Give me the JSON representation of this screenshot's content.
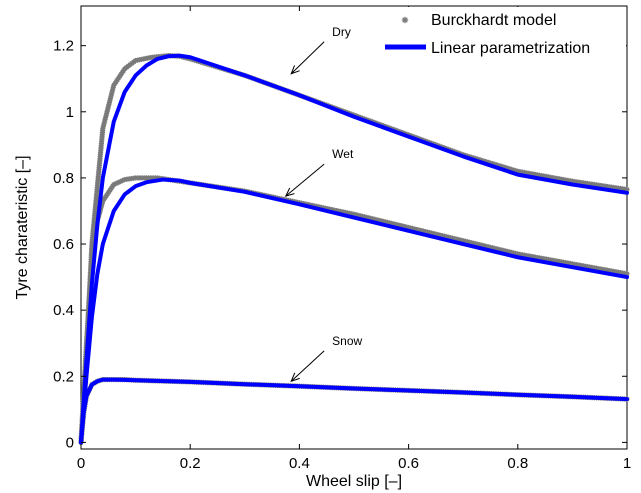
{
  "chart_data": {
    "type": "line",
    "title": "",
    "xlabel": "Wheel slip [–]",
    "ylabel": "Tyre charateristic [–]",
    "xlim": [
      0,
      1
    ],
    "ylim": [
      -0.02,
      1.32
    ],
    "x_ticks": [
      0,
      0.2,
      0.4,
      0.6,
      0.8,
      1
    ],
    "x_tick_labels": [
      "0",
      "0.2",
      "0.4",
      "0.6",
      "0.8",
      "1"
    ],
    "y_ticks": [
      0,
      0.2,
      0.4,
      0.6,
      0.8,
      1,
      1.2
    ],
    "y_tick_labels": [
      "0",
      "0.2",
      "0.4",
      "0.6",
      "0.8",
      "1",
      "1.2"
    ],
    "grid": false,
    "legend_position": "top-right",
    "colors": {
      "burckhardt": "#7a7a7a",
      "linear": "#0000ff"
    },
    "legend": [
      {
        "label": "Burckhardt model",
        "marker": "asterisk",
        "color": "#7a7a7a"
      },
      {
        "label": "Linear parametrization",
        "line": "solid",
        "color": "#0000ff"
      }
    ],
    "series": [
      {
        "name": "Burckhardt model",
        "style": "markers",
        "color": "#7a7a7a",
        "curves": [
          {
            "surface": "Dry",
            "x": [
              0,
              0.01,
              0.02,
              0.04,
              0.06,
              0.08,
              0.1,
              0.13,
              0.16,
              0.18,
              0.2,
              0.3,
              0.4,
              0.5,
              0.6,
              0.7,
              0.8,
              0.9,
              1.0
            ],
            "y": [
              0,
              0.28,
              0.6,
              0.95,
              1.08,
              1.13,
              1.155,
              1.165,
              1.17,
              1.168,
              1.16,
              1.11,
              1.05,
              0.99,
              0.93,
              0.87,
              0.82,
              0.79,
              0.765
            ]
          },
          {
            "surface": "Wet",
            "x": [
              0,
              0.01,
              0.02,
              0.03,
              0.04,
              0.06,
              0.08,
              0.1,
              0.12,
              0.14,
              0.16,
              0.2,
              0.3,
              0.4,
              0.5,
              0.6,
              0.7,
              0.8,
              0.9,
              1.0
            ],
            "y": [
              0,
              0.3,
              0.55,
              0.67,
              0.73,
              0.78,
              0.795,
              0.8,
              0.8,
              0.8,
              0.795,
              0.785,
              0.76,
              0.725,
              0.69,
              0.65,
              0.61,
              0.57,
              0.54,
              0.51
            ]
          },
          {
            "surface": "Snow",
            "x": [
              0,
              0.005,
              0.01,
              0.02,
              0.03,
              0.04,
              0.06,
              0.08,
              0.1,
              0.2,
              0.3,
              0.4,
              0.5,
              0.6,
              0.7,
              0.8,
              0.9,
              1.0
            ],
            "y": [
              0,
              0.09,
              0.14,
              0.175,
              0.185,
              0.19,
              0.19,
              0.19,
              0.188,
              0.183,
              0.176,
              0.17,
              0.163,
              0.157,
              0.151,
              0.144,
              0.138,
              0.131
            ]
          }
        ]
      },
      {
        "name": "Linear parametrization",
        "style": "line",
        "color": "#0000ff",
        "curves": [
          {
            "surface": "Dry",
            "x": [
              0,
              0.01,
              0.02,
              0.03,
              0.04,
              0.06,
              0.08,
              0.1,
              0.12,
              0.14,
              0.16,
              0.18,
              0.2,
              0.3,
              0.4,
              0.5,
              0.6,
              0.7,
              0.8,
              0.9,
              1.0
            ],
            "y": [
              0,
              0.25,
              0.48,
              0.66,
              0.8,
              0.97,
              1.06,
              1.11,
              1.14,
              1.16,
              1.168,
              1.17,
              1.165,
              1.11,
              1.05,
              0.985,
              0.925,
              0.865,
              0.81,
              0.78,
              0.755
            ]
          },
          {
            "surface": "Wet",
            "x": [
              0,
              0.01,
              0.02,
              0.03,
              0.04,
              0.06,
              0.08,
              0.1,
              0.12,
              0.15,
              0.18,
              0.2,
              0.3,
              0.4,
              0.5,
              0.6,
              0.7,
              0.8,
              0.9,
              1.0
            ],
            "y": [
              0,
              0.2,
              0.38,
              0.51,
              0.6,
              0.7,
              0.75,
              0.775,
              0.787,
              0.795,
              0.792,
              0.785,
              0.758,
              0.72,
              0.68,
              0.64,
              0.6,
              0.56,
              0.53,
              0.5
            ]
          },
          {
            "surface": "Snow",
            "x": [
              0,
              0.005,
              0.01,
              0.02,
              0.03,
              0.04,
              0.06,
              0.08,
              0.1,
              0.2,
              0.3,
              0.4,
              0.5,
              0.6,
              0.7,
              0.8,
              0.9,
              1.0
            ],
            "y": [
              0,
              0.09,
              0.14,
              0.175,
              0.185,
              0.19,
              0.19,
              0.189,
              0.188,
              0.183,
              0.176,
              0.17,
              0.163,
              0.157,
              0.151,
              0.144,
              0.138,
              0.131
            ]
          }
        ]
      }
    ],
    "annotations": [
      {
        "text": "Dry",
        "label_at": [
          0.46,
          1.23
        ],
        "arrow_to": [
          0.385,
          1.115
        ]
      },
      {
        "text": "Wet",
        "label_at": [
          0.46,
          0.86
        ],
        "arrow_to": [
          0.375,
          0.745
        ]
      },
      {
        "text": "Snow",
        "label_at": [
          0.46,
          0.295
        ],
        "arrow_to": [
          0.385,
          0.185
        ]
      }
    ]
  }
}
